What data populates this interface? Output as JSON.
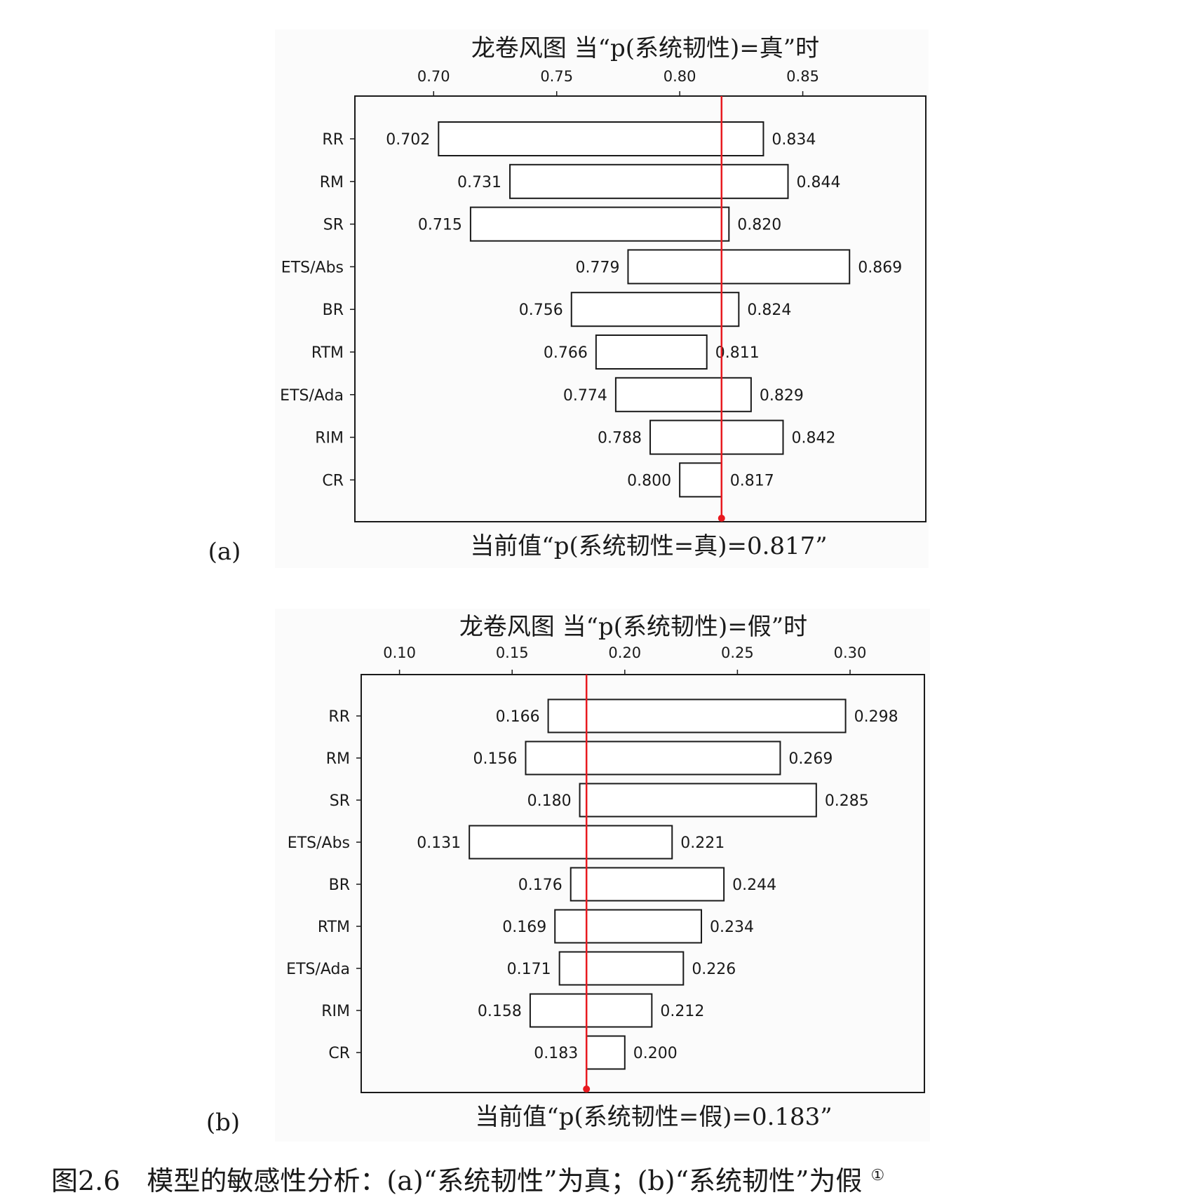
{
  "figure": {
    "caption": "图2.6　模型的敏感性分析：(a)“系统韧性”为真；(b)“系统韧性”为假",
    "footnote_mark": "①"
  },
  "chart_data": [
    {
      "type": "tornado",
      "panel_label": "(a)",
      "title": "龙卷风图 当“p(系统韧性)=真”时",
      "xlabel": "当前值“p(系统韧性=真)=0.817”",
      "xlim": [
        0.668,
        0.9
      ],
      "xticks": [
        0.7,
        0.75,
        0.8,
        0.85
      ],
      "xtick_labels": [
        "0.70",
        "0.75",
        "0.80",
        "0.85"
      ],
      "current_value": 0.817,
      "categories": [
        "RR",
        "RM",
        "SR",
        "ETS/Abs",
        "BR",
        "RTM",
        "ETS/Ada",
        "RIM",
        "CR"
      ],
      "low": [
        0.702,
        0.731,
        0.715,
        0.779,
        0.756,
        0.766,
        0.774,
        0.788,
        0.8
      ],
      "high": [
        0.834,
        0.844,
        0.82,
        0.869,
        0.824,
        0.811,
        0.829,
        0.842,
        0.817
      ],
      "low_labels": [
        "0.702",
        "0.731",
        "0.715",
        "0.779",
        "0.756",
        "0.766",
        "0.774",
        "0.788",
        "0.800"
      ],
      "high_labels": [
        "0.834",
        "0.844",
        "0.820",
        "0.869",
        "0.824",
        "0.811",
        "0.829",
        "0.842",
        "0.817"
      ],
      "reference_line_color": "#e8191f",
      "bar_fill": "#ffffff",
      "bar_stroke": "#1a1a1a"
    },
    {
      "type": "tornado",
      "panel_label": "(b)",
      "title": "龙卷风图 当“p(系统韧性)=假”时",
      "xlabel": "当前值“p(系统韧性=假)=0.183”",
      "xlim": [
        0.083,
        0.333
      ],
      "xticks": [
        0.1,
        0.15,
        0.2,
        0.25,
        0.3
      ],
      "xtick_labels": [
        "0.10",
        "0.15",
        "0.20",
        "0.25",
        "0.30"
      ],
      "current_value": 0.183,
      "categories": [
        "RR",
        "RM",
        "SR",
        "ETS/Abs",
        "BR",
        "RTM",
        "ETS/Ada",
        "RIM",
        "CR"
      ],
      "low": [
        0.166,
        0.156,
        0.18,
        0.131,
        0.176,
        0.169,
        0.171,
        0.158,
        0.183
      ],
      "high": [
        0.298,
        0.269,
        0.285,
        0.221,
        0.244,
        0.234,
        0.226,
        0.212,
        0.2
      ],
      "low_labels": [
        "0.166",
        "0.156",
        "0.180",
        "0.131",
        "0.176",
        "0.169",
        "0.171",
        "0.158",
        "0.183"
      ],
      "high_labels": [
        "0.298",
        "0.269",
        "0.285",
        "0.221",
        "0.244",
        "0.234",
        "0.226",
        "0.212",
        "0.200"
      ],
      "reference_line_color": "#e8191f",
      "bar_fill": "#ffffff",
      "bar_stroke": "#1a1a1a"
    }
  ]
}
